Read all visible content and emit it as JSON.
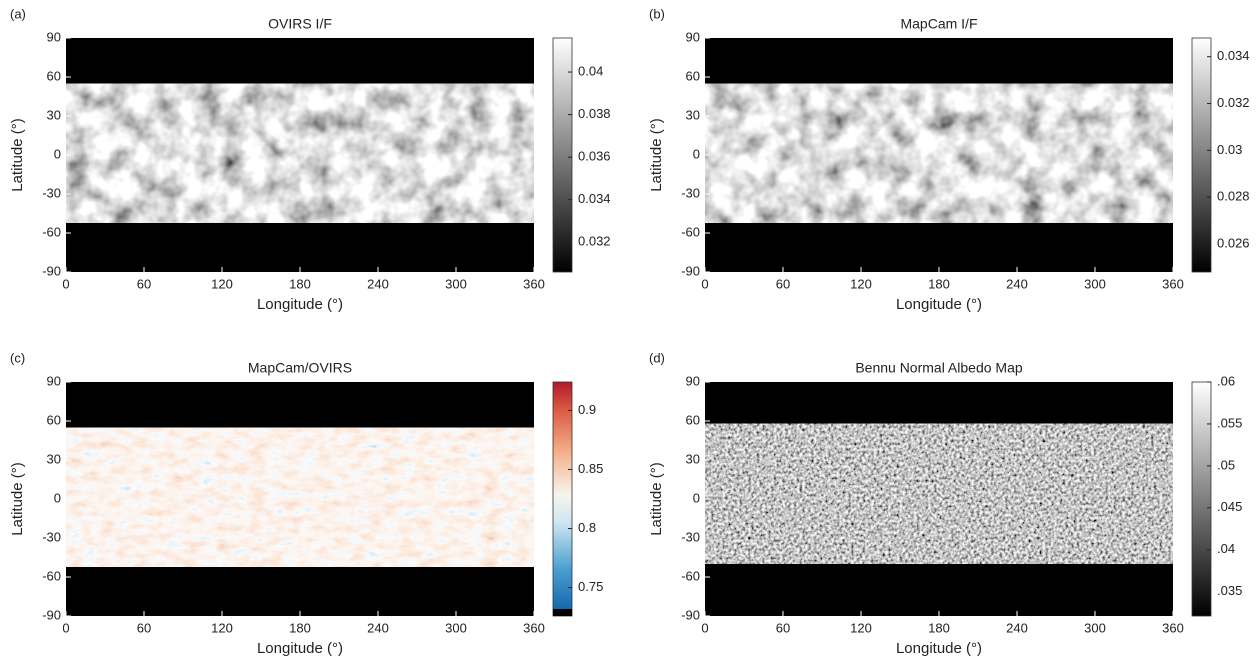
{
  "chart_data": [
    {
      "type": "heatmap",
      "panel": "(a)",
      "title": "OVIRS I/F",
      "xlabel": "Longitude (°)",
      "ylabel": "Latitude (°)",
      "xlim": [
        0,
        360
      ],
      "xticks": [
        0,
        60,
        120,
        180,
        240,
        300,
        360
      ],
      "ylim": [
        -90,
        90
      ],
      "yticks": [
        -90,
        -60,
        -30,
        0,
        30,
        60,
        90
      ],
      "colormap": "gray",
      "clim": [
        0.0306,
        0.0416
      ],
      "cticks": [
        0.032,
        0.034,
        0.036,
        0.038,
        0.04
      ]
    },
    {
      "type": "heatmap",
      "panel": "(b)",
      "title": "MapCam I/F",
      "xlabel": "Longitude (°)",
      "ylabel": "Latitude (°)",
      "xlim": [
        0,
        360
      ],
      "xticks": [
        0,
        60,
        120,
        180,
        240,
        300,
        360
      ],
      "ylim": [
        -90,
        90
      ],
      "yticks": [
        -90,
        -60,
        -30,
        0,
        30,
        60,
        90
      ],
      "colormap": "gray",
      "clim": [
        0.0248,
        0.0348
      ],
      "cticks": [
        0.026,
        0.028,
        0.03,
        0.032,
        0.034
      ]
    },
    {
      "type": "heatmap",
      "panel": "(c)",
      "title": "MapCam/OVIRS",
      "xlabel": "Longitude (°)",
      "ylabel": "Latitude (°)",
      "xlim": [
        0,
        360
      ],
      "xticks": [
        0,
        60,
        120,
        180,
        240,
        300,
        360
      ],
      "ylim": [
        -90,
        90
      ],
      "yticks": [
        -90,
        -60,
        -30,
        0,
        30,
        60,
        90
      ],
      "colormap": "RdBu",
      "clim": [
        0.726,
        0.924
      ],
      "cticks": [
        0.75,
        0.8,
        0.85,
        0.9
      ]
    },
    {
      "type": "heatmap",
      "panel": "(d)",
      "title": "Bennu Normal Albedo Map",
      "xlabel": "Longitude (°)",
      "ylabel": "Latitude (°)",
      "xlim": [
        0,
        360
      ],
      "xticks": [
        0,
        60,
        120,
        180,
        240,
        300,
        360
      ],
      "ylim": [
        -90,
        90
      ],
      "yticks": [
        -90,
        -60,
        -30,
        0,
        30,
        60,
        90
      ],
      "colormap": "gray",
      "clim": [
        0.0321,
        0.06
      ],
      "cticks": [
        {
          "value": 0.035,
          "label": ".035"
        },
        {
          "value": 0.04,
          "label": ".04"
        },
        {
          "value": 0.045,
          "label": ".045"
        },
        {
          "value": 0.05,
          "label": ".05"
        },
        {
          "value": 0.055,
          "label": ".055"
        },
        {
          "value": 0.06,
          "label": ".06"
        }
      ]
    }
  ]
}
